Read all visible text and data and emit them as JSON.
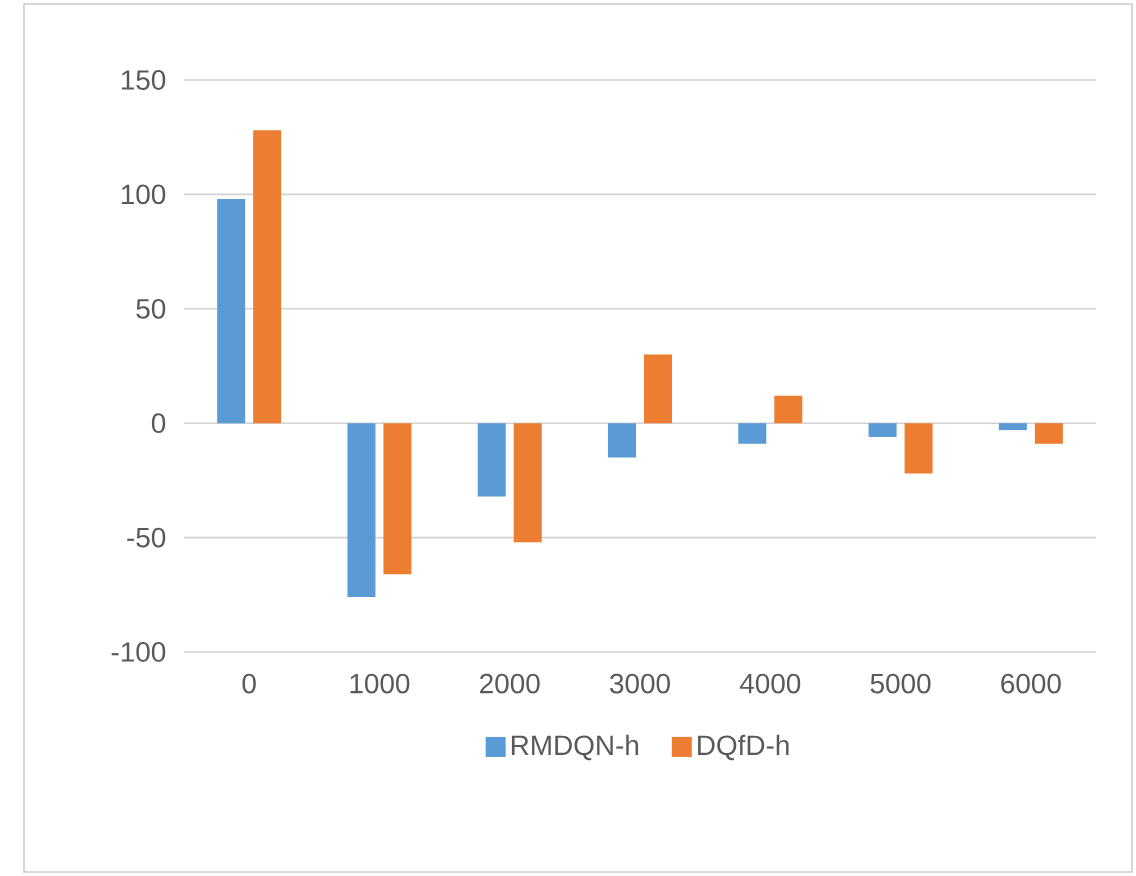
{
  "chart_data": {
    "type": "bar",
    "categories": [
      "0",
      "1000",
      "2000",
      "3000",
      "4000",
      "5000",
      "6000"
    ],
    "series": [
      {
        "name": "RMDQN-h",
        "color": "#5b9bd5",
        "values": [
          98,
          -76,
          -32,
          -15,
          -9,
          -6,
          -3
        ]
      },
      {
        "name": "DQfD-h",
        "color": "#ed7d31",
        "values": [
          128,
          -66,
          -52,
          30,
          12,
          -22,
          -9
        ]
      }
    ],
    "ylim": [
      -100,
      150
    ],
    "yticks": [
      -100,
      -50,
      0,
      50,
      100,
      150
    ],
    "grid": "y",
    "legend": "bottom"
  }
}
